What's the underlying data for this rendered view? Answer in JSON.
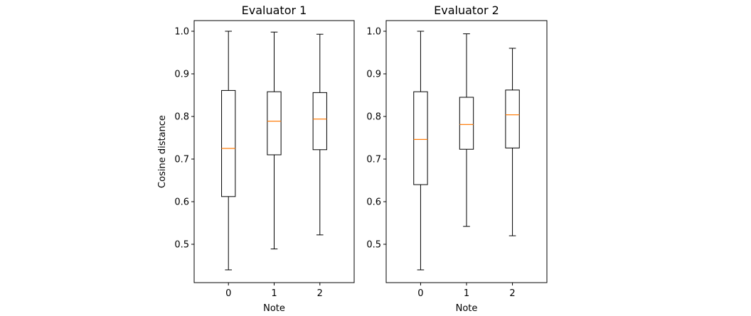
{
  "chart_data": [
    {
      "type": "box",
      "title": "Evaluator 1",
      "xlabel": "Note",
      "ylabel": "Cosine distance",
      "categories": [
        "0",
        "1",
        "2"
      ],
      "ylim": [
        0.41,
        1.025
      ],
      "yticks": [
        "0.5",
        "0.6",
        "0.7",
        "0.8",
        "0.9",
        "1.0"
      ],
      "boxes": [
        {
          "category": "0",
          "whisker_low": 0.44,
          "q1": 0.612,
          "median": 0.725,
          "q3": 0.861,
          "whisker_high": 1.0
        },
        {
          "category": "1",
          "whisker_low": 0.489,
          "q1": 0.71,
          "median": 0.789,
          "q3": 0.858,
          "whisker_high": 0.998
        },
        {
          "category": "2",
          "whisker_low": 0.522,
          "q1": 0.722,
          "median": 0.794,
          "q3": 0.856,
          "whisker_high": 0.993
        }
      ],
      "colors": {
        "box": "#000000",
        "median": "#ff7f0e"
      }
    },
    {
      "type": "box",
      "title": "Evaluator 2",
      "xlabel": "Note",
      "ylabel": "",
      "categories": [
        "0",
        "1",
        "2"
      ],
      "ylim": [
        0.41,
        1.025
      ],
      "yticks": [
        "0.5",
        "0.6",
        "0.7",
        "0.8",
        "0.9",
        "1.0"
      ],
      "boxes": [
        {
          "category": "0",
          "whisker_low": 0.44,
          "q1": 0.64,
          "median": 0.746,
          "q3": 0.858,
          "whisker_high": 1.0
        },
        {
          "category": "1",
          "whisker_low": 0.542,
          "q1": 0.723,
          "median": 0.781,
          "q3": 0.845,
          "whisker_high": 0.994
        },
        {
          "category": "2",
          "whisker_low": 0.52,
          "q1": 0.726,
          "median": 0.804,
          "q3": 0.862,
          "whisker_high": 0.96
        }
      ],
      "colors": {
        "box": "#000000",
        "median": "#ff7f0e"
      }
    }
  ]
}
